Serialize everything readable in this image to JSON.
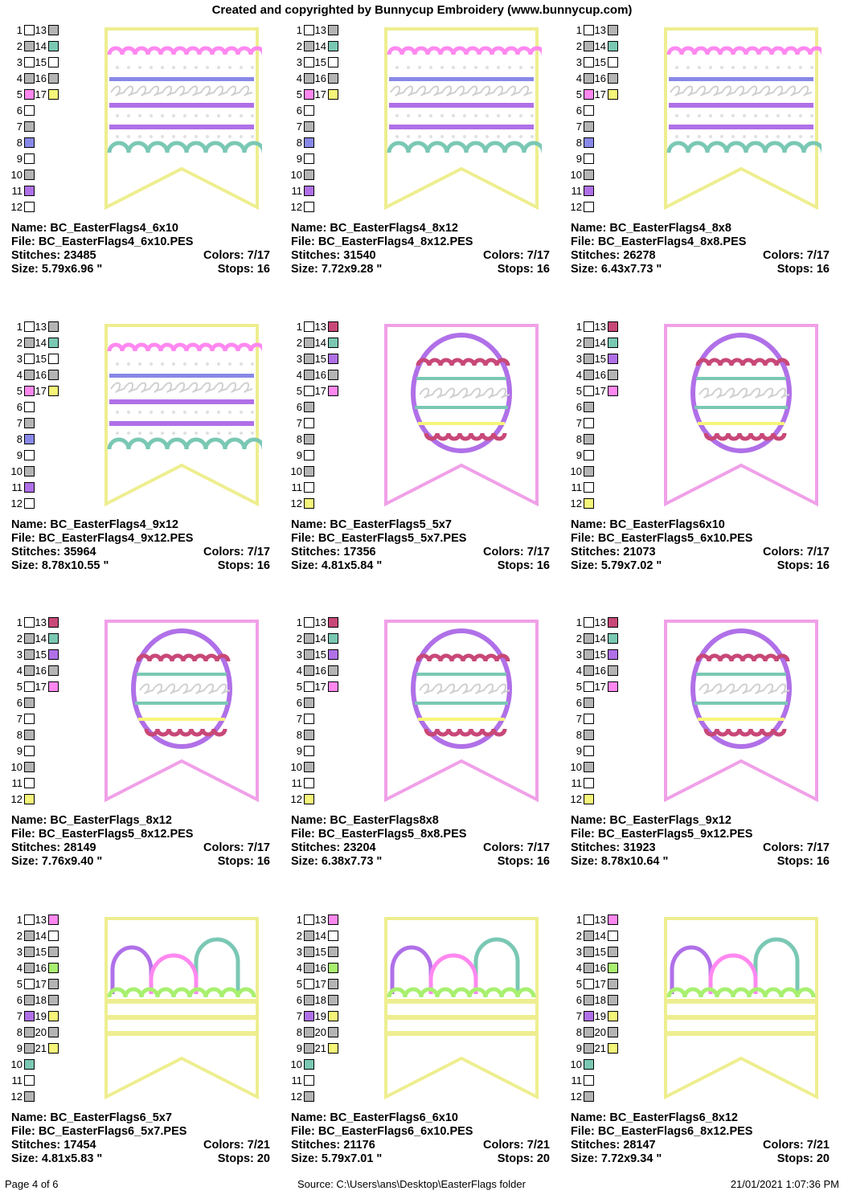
{
  "header": "Created and copyrighted by Bunnycup Embroidery (www.bunnycup.com)",
  "footer": {
    "page": "Page 4 of 6",
    "source": "Source: C:\\Users\\ans\\Desktop\\EasterFlags folder",
    "datetime": "21/01/2021 1:07:36 PM"
  },
  "colors": {
    "white": "#ffffff",
    "grey": "#b4b4b4",
    "teal": "#7ac8b4",
    "pink": "#ff88f0",
    "yellow": "#f5f57a",
    "violet": "#8888e8",
    "purple": "#b070e8",
    "magenta": "#c84878",
    "lime": "#a8f070",
    "frame_yellow": "#eeee90",
    "frame_pink": "#f0a0e8"
  },
  "designs": [
    {
      "name": "Name: BC_EasterFlags4_6x10",
      "file": "File: BC_EasterFlags4_6x10.PES",
      "stitches": "Stitches: 23485",
      "colors": "Colors: 7/17",
      "size": "Size: 5.79x6.96 \"",
      "stops": "Stops: 16",
      "variant": "stripes",
      "swatches": [
        [
          "1",
          "white",
          "13",
          "grey"
        ],
        [
          "2",
          "grey",
          "14",
          "teal"
        ],
        [
          "3",
          "white",
          "15",
          "white"
        ],
        [
          "4",
          "grey",
          "16",
          "grey"
        ],
        [
          "5",
          "pink",
          "17",
          "yellow"
        ],
        [
          "6",
          "white"
        ],
        [
          "7",
          "grey"
        ],
        [
          "8",
          "violet"
        ],
        [
          "9",
          "white"
        ],
        [
          "10",
          "grey"
        ],
        [
          "11",
          "purple"
        ],
        [
          "12",
          "white"
        ]
      ]
    },
    {
      "name": "Name: BC_EasterFlags4_8x12",
      "file": "File: BC_EasterFlags4_8x12.PES",
      "stitches": "Stitches: 31540",
      "colors": "Colors: 7/17",
      "size": "Size: 7.72x9.28 \"",
      "stops": "Stops: 16",
      "variant": "stripes",
      "swatches": [
        [
          "1",
          "white",
          "13",
          "grey"
        ],
        [
          "2",
          "grey",
          "14",
          "teal"
        ],
        [
          "3",
          "white",
          "15",
          "white"
        ],
        [
          "4",
          "grey",
          "16",
          "grey"
        ],
        [
          "5",
          "pink",
          "17",
          "yellow"
        ],
        [
          "6",
          "white"
        ],
        [
          "7",
          "grey"
        ],
        [
          "8",
          "violet"
        ],
        [
          "9",
          "white"
        ],
        [
          "10",
          "grey"
        ],
        [
          "11",
          "purple"
        ],
        [
          "12",
          "white"
        ]
      ]
    },
    {
      "name": "Name: BC_EasterFlags4_8x8",
      "file": "File: BC_EasterFlags4_8x8.PES",
      "stitches": "Stitches: 26278",
      "colors": "Colors: 7/17",
      "size": "Size: 6.43x7.73 \"",
      "stops": "Stops: 16",
      "variant": "stripes",
      "swatches": [
        [
          "1",
          "white",
          "13",
          "grey"
        ],
        [
          "2",
          "grey",
          "14",
          "teal"
        ],
        [
          "3",
          "white",
          "15",
          "white"
        ],
        [
          "4",
          "grey",
          "16",
          "grey"
        ],
        [
          "5",
          "pink",
          "17",
          "yellow"
        ],
        [
          "6",
          "white"
        ],
        [
          "7",
          "grey"
        ],
        [
          "8",
          "violet"
        ],
        [
          "9",
          "white"
        ],
        [
          "10",
          "grey"
        ],
        [
          "11",
          "purple"
        ],
        [
          "12",
          "white"
        ]
      ]
    },
    {
      "name": "Name: BC_EasterFlags4_9x12",
      "file": "File: BC_EasterFlags4_9x12.PES",
      "stitches": "Stitches: 35964",
      "colors": "Colors: 7/17",
      "size": "Size: 8.78x10.55 \"",
      "stops": "Stops: 16",
      "variant": "stripes",
      "swatches": [
        [
          "1",
          "white",
          "13",
          "grey"
        ],
        [
          "2",
          "grey",
          "14",
          "teal"
        ],
        [
          "3",
          "white",
          "15",
          "white"
        ],
        [
          "4",
          "grey",
          "16",
          "grey"
        ],
        [
          "5",
          "pink",
          "17",
          "yellow"
        ],
        [
          "6",
          "white"
        ],
        [
          "7",
          "grey"
        ],
        [
          "8",
          "violet"
        ],
        [
          "9",
          "white"
        ],
        [
          "10",
          "grey"
        ],
        [
          "11",
          "purple"
        ],
        [
          "12",
          "white"
        ]
      ]
    },
    {
      "name": "Name: BC_EasterFlags5_5x7",
      "file": "File: BC_EasterFlags5_5x7.PES",
      "stitches": "Stitches: 17356",
      "colors": "Colors: 7/17",
      "size": "Size: 4.81x5.84 \"",
      "stops": "Stops: 16",
      "variant": "egg",
      "swatches": [
        [
          "1",
          "white",
          "13",
          "magenta"
        ],
        [
          "2",
          "grey",
          "14",
          "teal"
        ],
        [
          "3",
          "grey",
          "15",
          "purple"
        ],
        [
          "4",
          "grey",
          "16",
          "grey"
        ],
        [
          "5",
          "white",
          "17",
          "pink"
        ],
        [
          "6",
          "grey"
        ],
        [
          "7",
          "white"
        ],
        [
          "8",
          "grey"
        ],
        [
          "9",
          "white"
        ],
        [
          "10",
          "grey"
        ],
        [
          "11",
          "white"
        ],
        [
          "12",
          "yellow"
        ]
      ]
    },
    {
      "name": "Name: BC_EasterFlags6x10",
      "file": "File: BC_EasterFlags5_6x10.PES",
      "stitches": "Stitches: 21073",
      "colors": "Colors: 7/17",
      "size": "Size: 5.79x7.02 \"",
      "stops": "Stops: 16",
      "variant": "egg",
      "swatches": [
        [
          "1",
          "white",
          "13",
          "magenta"
        ],
        [
          "2",
          "grey",
          "14",
          "teal"
        ],
        [
          "3",
          "grey",
          "15",
          "purple"
        ],
        [
          "4",
          "grey",
          "16",
          "grey"
        ],
        [
          "5",
          "white",
          "17",
          "pink"
        ],
        [
          "6",
          "grey"
        ],
        [
          "7",
          "white"
        ],
        [
          "8",
          "grey"
        ],
        [
          "9",
          "white"
        ],
        [
          "10",
          "grey"
        ],
        [
          "11",
          "white"
        ],
        [
          "12",
          "yellow"
        ]
      ]
    },
    {
      "name": "Name: BC_EasterFlags_8x12",
      "file": "File: BC_EasterFlags5_8x12.PES",
      "stitches": "Stitches: 28149",
      "colors": "Colors: 7/17",
      "size": "Size: 7.76x9.40 \"",
      "stops": "Stops: 16",
      "variant": "egg",
      "swatches": [
        [
          "1",
          "white",
          "13",
          "magenta"
        ],
        [
          "2",
          "grey",
          "14",
          "teal"
        ],
        [
          "3",
          "grey",
          "15",
          "purple"
        ],
        [
          "4",
          "grey",
          "16",
          "grey"
        ],
        [
          "5",
          "white",
          "17",
          "pink"
        ],
        [
          "6",
          "grey"
        ],
        [
          "7",
          "white"
        ],
        [
          "8",
          "grey"
        ],
        [
          "9",
          "white"
        ],
        [
          "10",
          "grey"
        ],
        [
          "11",
          "white"
        ],
        [
          "12",
          "yellow"
        ]
      ]
    },
    {
      "name": "Name: BC_EasterFlags8x8",
      "file": "File: BC_EasterFlags5_8x8.PES",
      "stitches": "Stitches: 23204",
      "colors": "Colors: 7/17",
      "size": "Size: 6.38x7.73 \"",
      "stops": "Stops: 16",
      "variant": "egg",
      "swatches": [
        [
          "1",
          "white",
          "13",
          "magenta"
        ],
        [
          "2",
          "grey",
          "14",
          "teal"
        ],
        [
          "3",
          "grey",
          "15",
          "purple"
        ],
        [
          "4",
          "grey",
          "16",
          "grey"
        ],
        [
          "5",
          "white",
          "17",
          "pink"
        ],
        [
          "6",
          "grey"
        ],
        [
          "7",
          "white"
        ],
        [
          "8",
          "grey"
        ],
        [
          "9",
          "white"
        ],
        [
          "10",
          "grey"
        ],
        [
          "11",
          "white"
        ],
        [
          "12",
          "yellow"
        ]
      ]
    },
    {
      "name": "Name: BC_EasterFlags_9x12",
      "file": "File: BC_EasterFlags5_9x12.PES",
      "stitches": "Stitches: 31923",
      "colors": "Colors: 7/17",
      "size": "Size: 8.78x10.64 \"",
      "stops": "Stops: 16",
      "variant": "egg",
      "swatches": [
        [
          "1",
          "white",
          "13",
          "magenta"
        ],
        [
          "2",
          "grey",
          "14",
          "teal"
        ],
        [
          "3",
          "grey",
          "15",
          "purple"
        ],
        [
          "4",
          "grey",
          "16",
          "grey"
        ],
        [
          "5",
          "white",
          "17",
          "pink"
        ],
        [
          "6",
          "grey"
        ],
        [
          "7",
          "white"
        ],
        [
          "8",
          "grey"
        ],
        [
          "9",
          "white"
        ],
        [
          "10",
          "grey"
        ],
        [
          "11",
          "white"
        ],
        [
          "12",
          "yellow"
        ]
      ]
    },
    {
      "name": "Name: BC_EasterFlags6_5x7",
      "file": "File: BC_EasterFlags6_5x7.PES",
      "stitches": "Stitches: 17454",
      "colors": "Colors: 7/21",
      "size": "Size: 4.81x5.83 \"",
      "stops": "Stops: 20",
      "variant": "basket",
      "swatches": [
        [
          "1",
          "white",
          "13",
          "pink"
        ],
        [
          "2",
          "grey",
          "14",
          "white"
        ],
        [
          "3",
          "grey",
          "15",
          "grey"
        ],
        [
          "4",
          "grey",
          "16",
          "lime"
        ],
        [
          "5",
          "white",
          "17",
          "grey"
        ],
        [
          "6",
          "grey",
          "18",
          "grey"
        ],
        [
          "7",
          "purple",
          "19",
          "yellow"
        ],
        [
          "8",
          "grey",
          "20",
          "grey"
        ],
        [
          "9",
          "grey",
          "21",
          "yellow"
        ],
        [
          "10",
          "teal"
        ],
        [
          "11",
          "white"
        ],
        [
          "12",
          "grey"
        ]
      ]
    },
    {
      "name": "Name: BC_EasterFlags6_6x10",
      "file": "File: BC_EasterFlags6_6x10.PES",
      "stitches": "Stitches: 21176",
      "colors": "Colors: 7/21",
      "size": "Size: 5.79x7.01 \"",
      "stops": "Stops: 20",
      "variant": "basket",
      "swatches": [
        [
          "1",
          "white",
          "13",
          "pink"
        ],
        [
          "2",
          "grey",
          "14",
          "white"
        ],
        [
          "3",
          "grey",
          "15",
          "grey"
        ],
        [
          "4",
          "grey",
          "16",
          "lime"
        ],
        [
          "5",
          "white",
          "17",
          "grey"
        ],
        [
          "6",
          "grey",
          "18",
          "grey"
        ],
        [
          "7",
          "purple",
          "19",
          "yellow"
        ],
        [
          "8",
          "grey",
          "20",
          "grey"
        ],
        [
          "9",
          "grey",
          "21",
          "yellow"
        ],
        [
          "10",
          "teal"
        ],
        [
          "11",
          "white"
        ],
        [
          "12",
          "grey"
        ]
      ]
    },
    {
      "name": "Name: BC_EasterFlags6_8x12",
      "file": "File: BC_EasterFlags6_8x12.PES",
      "stitches": "Stitches: 28147",
      "colors": "Colors: 7/21",
      "size": "Size: 7.72x9.34 \"",
      "stops": "Stops: 20",
      "variant": "basket",
      "swatches": [
        [
          "1",
          "white",
          "13",
          "pink"
        ],
        [
          "2",
          "grey",
          "14",
          "white"
        ],
        [
          "3",
          "grey",
          "15",
          "grey"
        ],
        [
          "4",
          "grey",
          "16",
          "lime"
        ],
        [
          "5",
          "white",
          "17",
          "grey"
        ],
        [
          "6",
          "grey",
          "18",
          "grey"
        ],
        [
          "7",
          "purple",
          "19",
          "yellow"
        ],
        [
          "8",
          "grey",
          "20",
          "grey"
        ],
        [
          "9",
          "grey",
          "21",
          "yellow"
        ],
        [
          "10",
          "teal"
        ],
        [
          "11",
          "white"
        ],
        [
          "12",
          "grey"
        ]
      ]
    }
  ]
}
